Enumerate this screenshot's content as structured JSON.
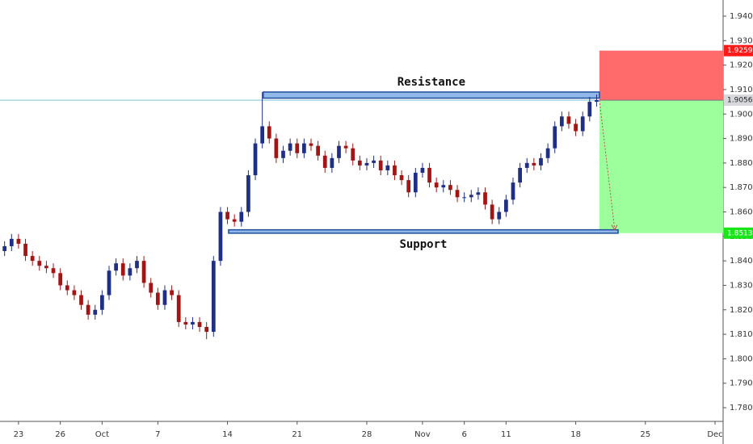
{
  "chart_data": {
    "type": "candlestick",
    "up_color": "#1f2f86",
    "down_color": "#a31515",
    "grid": false,
    "xlim": [
      -1.33,
      50.58
    ],
    "ylim": [
      1.7744,
      1.9466
    ],
    "xticks": [
      {
        "value": 0,
        "label": "23"
      },
      {
        "value": 3,
        "label": "26"
      },
      {
        "value": 6,
        "label": "Oct"
      },
      {
        "value": 10,
        "label": "7"
      },
      {
        "value": 15,
        "label": "14"
      },
      {
        "value": 20,
        "label": "21"
      },
      {
        "value": 25,
        "label": "28"
      },
      {
        "value": 29,
        "label": "Nov"
      },
      {
        "value": 32,
        "label": "6"
      },
      {
        "value": 35,
        "label": "11"
      },
      {
        "value": 40,
        "label": "18"
      },
      {
        "value": 45,
        "label": "25"
      },
      {
        "value": 50,
        "label": "Dec"
      }
    ],
    "yticks": [
      {
        "value": 1.78,
        "label": "1.78000"
      },
      {
        "value": 1.79,
        "label": "1.79000"
      },
      {
        "value": 1.8,
        "label": "1.80000"
      },
      {
        "value": 1.81,
        "label": "1.81000"
      },
      {
        "value": 1.82,
        "label": "1.82000"
      },
      {
        "value": 1.83,
        "label": "1.83000"
      },
      {
        "value": 1.84,
        "label": "1.84000"
      },
      {
        "value": 1.85,
        "label": "1.85000"
      },
      {
        "value": 1.86,
        "label": "1.86000"
      },
      {
        "value": 1.87,
        "label": "1.87000"
      },
      {
        "value": 1.88,
        "label": "1.88000"
      },
      {
        "value": 1.89,
        "label": "1.89000"
      },
      {
        "value": 1.9,
        "label": "1.90000"
      },
      {
        "value": 1.91,
        "label": "1.91000"
      },
      {
        "value": 1.92,
        "label": "1.92000"
      },
      {
        "value": 1.93,
        "label": "1.93000"
      },
      {
        "value": 1.94,
        "label": "1.94000"
      }
    ],
    "x": [
      -1,
      -0.5,
      0,
      0.5,
      1,
      1.5,
      2,
      2.5,
      3,
      3.5,
      4,
      4.5,
      5,
      5.5,
      6,
      6.5,
      7,
      7.5,
      8,
      8.5,
      9,
      9.5,
      10,
      10.5,
      11,
      11.5,
      12,
      12.5,
      13,
      13.5,
      14,
      14.5,
      15,
      15.5,
      16,
      16.5,
      17,
      17.5,
      18,
      18.5,
      19,
      19.5,
      20,
      20.5,
      21,
      21.5,
      22,
      22.5,
      23,
      23.5,
      24,
      24.5,
      25,
      25.5,
      26,
      26.5,
      27,
      27.5,
      28,
      28.5,
      29,
      29.5,
      30,
      30.5,
      31,
      31.5,
      32,
      32.5,
      33,
      33.5,
      34,
      34.5,
      35,
      35.5,
      36,
      36.5,
      37,
      37.5,
      38,
      38.5,
      39,
      39.5,
      40,
      40.5,
      41,
      41.5
    ],
    "open": [
      1.844,
      1.846,
      1.849,
      1.847,
      1.842,
      1.84,
      1.838,
      1.837,
      1.835,
      1.83,
      1.828,
      1.826,
      1.822,
      1.818,
      1.82,
      1.826,
      1.836,
      1.839,
      1.834,
      1.837,
      1.84,
      1.831,
      1.827,
      1.822,
      1.828,
      1.826,
      1.815,
      1.814,
      1.815,
      1.813,
      1.811,
      1.84,
      1.86,
      1.857,
      1.856,
      1.86,
      1.875,
      1.888,
      1.895,
      1.89,
      1.882,
      1.885,
      1.888,
      1.884,
      1.888,
      1.887,
      1.883,
      1.878,
      1.882,
      1.887,
      1.886,
      1.881,
      1.879,
      1.88,
      1.881,
      1.877,
      1.879,
      1.875,
      1.873,
      1.868,
      1.876,
      1.878,
      1.872,
      1.87,
      1.871,
      1.869,
      1.866,
      1.866,
      1.867,
      1.868,
      1.863,
      1.857,
      1.86,
      1.865,
      1.872,
      1.878,
      1.88,
      1.879,
      1.882,
      1.886,
      1.895,
      1.899,
      1.896,
      1.893,
      1.899,
      1.905
    ],
    "high": [
      1.848,
      1.851,
      1.851,
      1.849,
      1.844,
      1.842,
      1.84,
      1.839,
      1.837,
      1.832,
      1.83,
      1.828,
      1.824,
      1.822,
      1.828,
      1.838,
      1.841,
      1.841,
      1.839,
      1.842,
      1.842,
      1.833,
      1.829,
      1.83,
      1.83,
      1.828,
      1.817,
      1.817,
      1.817,
      1.815,
      1.842,
      1.862,
      1.862,
      1.859,
      1.862,
      1.877,
      1.89,
      1.909,
      1.897,
      1.892,
      1.887,
      1.89,
      1.89,
      1.89,
      1.89,
      1.889,
      1.885,
      1.884,
      1.889,
      1.889,
      1.888,
      1.883,
      1.882,
      1.883,
      1.883,
      1.881,
      1.881,
      1.877,
      1.875,
      1.878,
      1.88,
      1.88,
      1.874,
      1.873,
      1.873,
      1.871,
      1.868,
      1.869,
      1.87,
      1.87,
      1.865,
      1.862,
      1.867,
      1.874,
      1.88,
      1.882,
      1.882,
      1.884,
      1.888,
      1.897,
      1.901,
      1.901,
      1.898,
      1.901,
      1.907,
      1.908
    ],
    "low": [
      1.842,
      1.844,
      1.845,
      1.84,
      1.838,
      1.836,
      1.835,
      1.833,
      1.828,
      1.826,
      1.824,
      1.82,
      1.816,
      1.816,
      1.818,
      1.824,
      1.834,
      1.832,
      1.832,
      1.835,
      1.829,
      1.825,
      1.82,
      1.82,
      1.824,
      1.813,
      1.812,
      1.812,
      1.811,
      1.808,
      1.809,
      1.838,
      1.855,
      1.854,
      1.854,
      1.858,
      1.873,
      1.886,
      1.888,
      1.88,
      1.88,
      1.883,
      1.882,
      1.882,
      1.885,
      1.881,
      1.876,
      1.876,
      1.88,
      1.884,
      1.879,
      1.877,
      1.877,
      1.878,
      1.875,
      1.875,
      1.873,
      1.871,
      1.866,
      1.866,
      1.874,
      1.87,
      1.868,
      1.868,
      1.867,
      1.864,
      1.864,
      1.864,
      1.865,
      1.861,
      1.855,
      1.855,
      1.858,
      1.863,
      1.87,
      1.876,
      1.877,
      1.877,
      1.88,
      1.884,
      1.893,
      1.894,
      1.891,
      1.891,
      1.897,
      1.903
    ],
    "close": [
      1.846,
      1.849,
      1.847,
      1.842,
      1.84,
      1.838,
      1.837,
      1.835,
      1.83,
      1.828,
      1.826,
      1.822,
      1.818,
      1.82,
      1.826,
      1.836,
      1.839,
      1.834,
      1.837,
      1.84,
      1.831,
      1.827,
      1.822,
      1.828,
      1.826,
      1.815,
      1.814,
      1.815,
      1.813,
      1.811,
      1.84,
      1.86,
      1.857,
      1.856,
      1.86,
      1.875,
      1.888,
      1.895,
      1.89,
      1.882,
      1.885,
      1.888,
      1.884,
      1.888,
      1.887,
      1.883,
      1.878,
      1.882,
      1.887,
      1.886,
      1.881,
      1.879,
      1.88,
      1.881,
      1.877,
      1.879,
      1.875,
      1.873,
      1.868,
      1.876,
      1.878,
      1.872,
      1.87,
      1.871,
      1.869,
      1.866,
      1.866,
      1.867,
      1.868,
      1.863,
      1.857,
      1.86,
      1.865,
      1.872,
      1.878,
      1.88,
      1.879,
      1.882,
      1.886,
      1.895,
      1.899,
      1.896,
      1.893,
      1.899,
      1.905,
      1.9057
    ],
    "zones": [
      {
        "label": "Resistance",
        "xlim": [
          17.57,
          41.7
        ],
        "ylim": [
          1.9065,
          1.909
        ],
        "color": "#90b8e8",
        "edge": "#1f4e9c"
      },
      {
        "label": "Support",
        "xlim": [
          15.08,
          43.04
        ],
        "ylim": [
          1.8513,
          1.8527
        ],
        "color": "#90b8e8",
        "edge": "#1f4e9c"
      }
    ],
    "position": {
      "xlim": [
        41.7,
        50.58
      ],
      "entry": 1.90565,
      "stop": 1.92591,
      "target": 1.85133,
      "stop_color": "#ff6b6b",
      "target_color": "#9cff9c",
      "entry_line_color": "#7cc3d8",
      "stop_label_color": "#ff1a1a",
      "entry_label_color": "#d6d8dc",
      "target_label_color": "#19e619"
    }
  }
}
